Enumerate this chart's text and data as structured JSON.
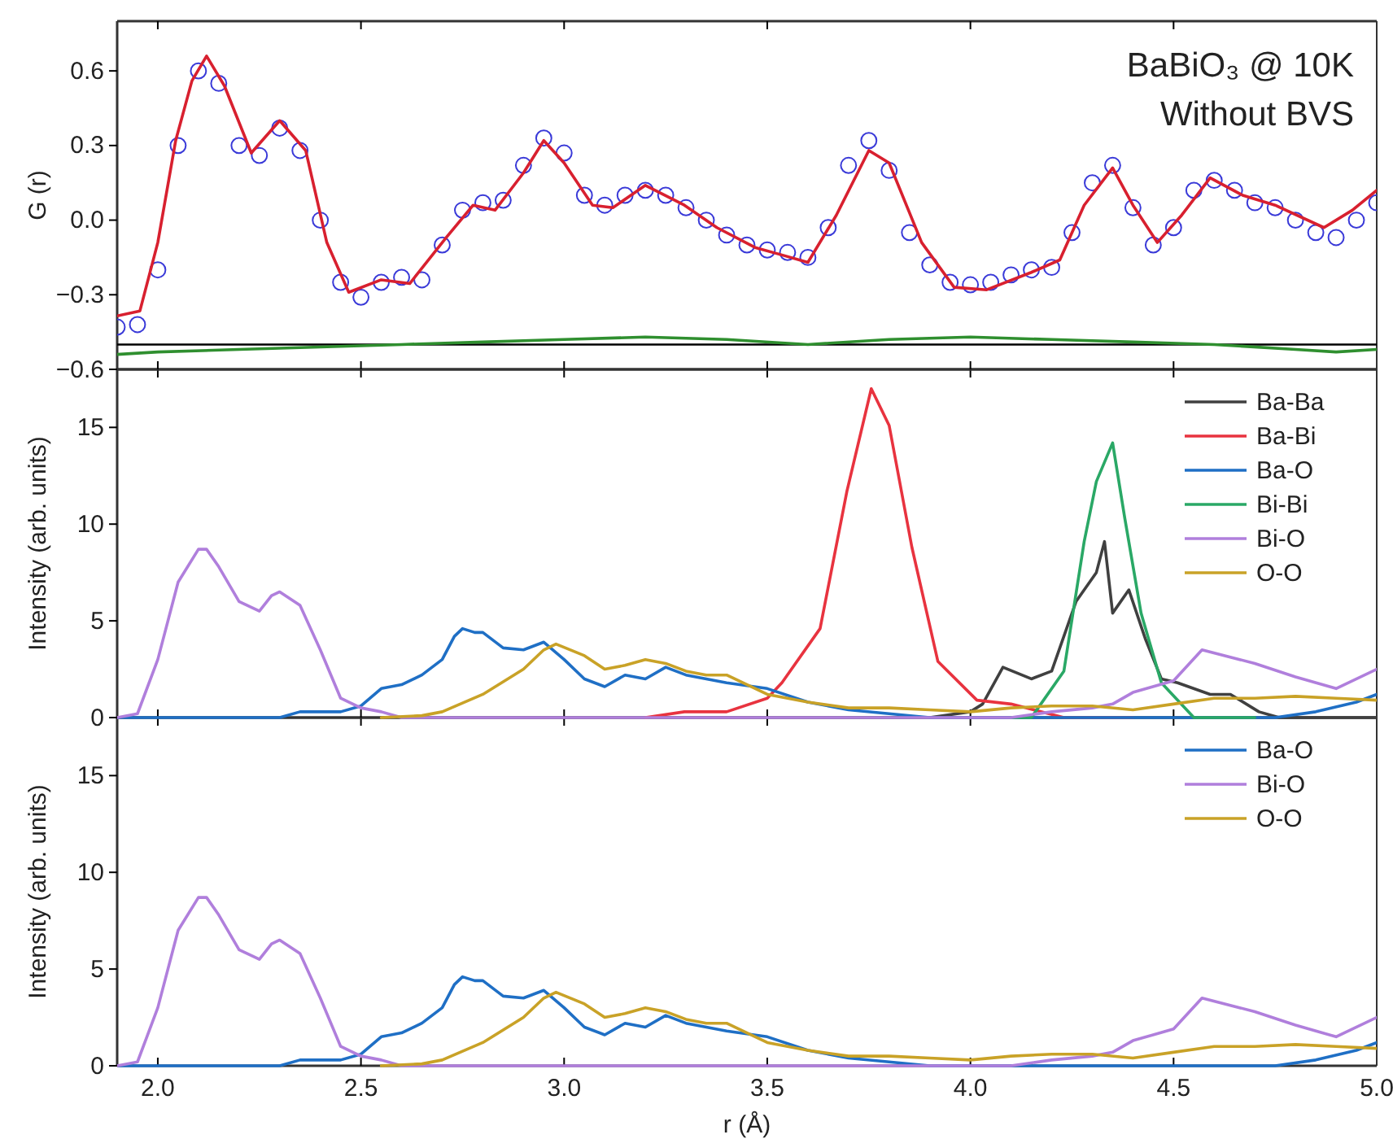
{
  "chart_data": [
    {
      "type": "line",
      "ylabel": "G (r)",
      "xlim": [
        1.9,
        5.0
      ],
      "ylim": [
        -0.6,
        0.8
      ],
      "tick_labels": "y",
      "grid": false,
      "legend": false,
      "xticks": [
        2,
        2.5,
        3,
        3.5,
        4,
        4.5,
        5
      ],
      "yticks": [
        {
          "value": -0.6,
          "label": "−0.6"
        },
        {
          "value": -0.3,
          "label": "−0.3"
        },
        {
          "value": 0,
          "label": "0.0"
        },
        {
          "value": 0.3,
          "label": "0.3"
        },
        {
          "value": 0.6,
          "label": "0.6"
        }
      ],
      "annotations": [
        "BaBiO₃ @ 10K",
        "Without BVS"
      ],
      "ref_lines": [
        {
          "axis": "y",
          "value": -0.5,
          "color": "#000000"
        }
      ],
      "series": [
        {
          "type": "scatter",
          "marker": "circle",
          "color": "#3a3ad8",
          "x": [
            1.9,
            1.95,
            2.0,
            2.05,
            2.1,
            2.15,
            2.2,
            2.25,
            2.3,
            2.35,
            2.4,
            2.45,
            2.5,
            2.55,
            2.6,
            2.65,
            2.7,
            2.75,
            2.8,
            2.85,
            2.9,
            2.95,
            3.0,
            3.05,
            3.1,
            3.15,
            3.2,
            3.25,
            3.3,
            3.35,
            3.4,
            3.45,
            3.5,
            3.55,
            3.6,
            3.65,
            3.7,
            3.75,
            3.8,
            3.85,
            3.9,
            3.95,
            4.0,
            4.05,
            4.1,
            4.15,
            4.2,
            4.25,
            4.3,
            4.35,
            4.4,
            4.45,
            4.5,
            4.55,
            4.6,
            4.65,
            4.7,
            4.75,
            4.8,
            4.85,
            4.9,
            4.95,
            5.0
          ],
          "values": [
            -0.43,
            -0.42,
            -0.2,
            0.3,
            0.6,
            0.55,
            0.3,
            0.26,
            0.37,
            0.28,
            0.0,
            -0.25,
            -0.31,
            -0.25,
            -0.23,
            -0.24,
            -0.1,
            0.04,
            0.07,
            0.08,
            0.22,
            0.33,
            0.27,
            0.1,
            0.06,
            0.1,
            0.12,
            0.1,
            0.05,
            0.0,
            -0.06,
            -0.1,
            -0.12,
            -0.13,
            -0.15,
            -0.03,
            0.22,
            0.32,
            0.2,
            -0.05,
            -0.18,
            -0.25,
            -0.26,
            -0.25,
            -0.22,
            -0.2,
            -0.19,
            -0.05,
            0.15,
            0.22,
            0.05,
            -0.1,
            -0.03,
            0.12,
            0.16,
            0.12,
            0.07,
            0.05,
            0.0,
            -0.05,
            -0.07,
            0.0,
            0.07
          ]
        },
        {
          "marker": "none",
          "color": "#d8202f",
          "x": [
            1.9,
            1.956,
            2.0,
            2.044,
            2.084,
            2.12,
            2.164,
            2.23,
            2.3,
            2.364,
            2.416,
            2.47,
            2.55,
            2.62,
            2.71,
            2.776,
            2.83,
            2.9,
            2.95,
            3.0,
            3.07,
            3.12,
            3.2,
            3.296,
            3.376,
            3.47,
            3.536,
            3.6,
            3.67,
            3.75,
            3.8,
            3.88,
            3.96,
            4.04,
            4.15,
            4.22,
            4.28,
            4.35,
            4.4,
            4.46,
            4.52,
            4.59,
            4.67,
            4.75,
            4.87,
            4.94,
            5.0
          ],
          "values": [
            -0.385,
            -0.365,
            -0.09,
            0.32,
            0.56,
            0.66,
            0.54,
            0.27,
            0.4,
            0.28,
            -0.09,
            -0.29,
            -0.24,
            -0.255,
            -0.07,
            0.06,
            0.04,
            0.19,
            0.32,
            0.23,
            0.06,
            0.05,
            0.14,
            0.06,
            -0.03,
            -0.11,
            -0.14,
            -0.17,
            0.02,
            0.28,
            0.23,
            -0.09,
            -0.27,
            -0.28,
            -0.21,
            -0.16,
            0.06,
            0.21,
            0.06,
            -0.09,
            0.02,
            0.17,
            0.1,
            0.06,
            -0.03,
            0.04,
            0.12
          ]
        },
        {
          "marker": "none",
          "color": "#2f8f2f",
          "x": [
            1.9,
            2.0,
            2.2,
            2.4,
            2.6,
            2.8,
            3.0,
            3.2,
            3.4,
            3.6,
            3.8,
            4.0,
            4.2,
            4.4,
            4.6,
            4.8,
            4.9,
            5.0
          ],
          "values": [
            -0.54,
            -0.53,
            -0.52,
            -0.51,
            -0.5,
            -0.49,
            -0.48,
            -0.47,
            -0.48,
            -0.5,
            -0.48,
            -0.47,
            -0.48,
            -0.49,
            -0.5,
            -0.52,
            -0.53,
            -0.52
          ]
        }
      ]
    },
    {
      "type": "line",
      "ylabel": "Intensity (arb. units)",
      "xlim": [
        1.9,
        5.0
      ],
      "ylim": [
        0,
        18
      ],
      "tick_labels": "y",
      "grid": false,
      "legend": "top right",
      "xticks": [
        2,
        2.5,
        3,
        3.5,
        4,
        4.5,
        5
      ],
      "yticks": [
        0,
        5,
        10,
        15
      ],
      "series": [
        {
          "name": "Ba-Ba",
          "color": "#404040",
          "x": [
            3.9,
            4.0,
            4.03,
            4.08,
            4.15,
            4.2,
            4.26,
            4.31,
            4.33,
            4.35,
            4.39,
            4.43,
            4.47,
            4.51,
            4.59,
            4.64,
            4.71,
            4.76,
            5.0
          ],
          "values": [
            0,
            0.3,
            0.7,
            2.6,
            2.0,
            2.4,
            6.0,
            7.5,
            9.1,
            5.4,
            6.6,
            4.1,
            2.0,
            1.8,
            1.2,
            1.2,
            0.3,
            0,
            0
          ]
        },
        {
          "name": "Ba-Bi",
          "color": "#e8333f",
          "x": [
            3.2,
            3.296,
            3.4,
            3.5,
            3.536,
            3.63,
            3.696,
            3.756,
            3.8,
            3.856,
            3.92,
            4.016,
            4.1,
            4.23,
            4.4
          ],
          "values": [
            0,
            0.3,
            0.3,
            1.0,
            1.8,
            4.6,
            11.7,
            17.0,
            15.1,
            8.8,
            2.9,
            0.9,
            0.7,
            0,
            0
          ]
        },
        {
          "name": "Ba-O",
          "color": "#1f6fc5",
          "x": [
            1.9,
            2.3,
            2.35,
            2.45,
            2.5,
            2.55,
            2.6,
            2.65,
            2.7,
            2.73,
            2.75,
            2.78,
            2.8,
            2.85,
            2.9,
            2.95,
            3.0,
            3.05,
            3.1,
            3.15,
            3.2,
            3.25,
            3.3,
            3.35,
            3.4,
            3.5,
            3.6,
            3.7,
            3.8,
            3.9,
            4.0,
            4.5,
            4.75,
            4.85,
            4.95,
            5.0
          ],
          "values": [
            0,
            0,
            0.3,
            0.3,
            0.6,
            1.5,
            1.7,
            2.2,
            3.0,
            4.2,
            4.6,
            4.4,
            4.4,
            3.6,
            3.5,
            3.9,
            3.0,
            2.0,
            1.6,
            2.2,
            2.0,
            2.6,
            2.2,
            2.0,
            1.8,
            1.5,
            0.8,
            0.4,
            0.2,
            0,
            0,
            0,
            0,
            0.3,
            0.8,
            1.2
          ]
        },
        {
          "name": "Bi-Bi",
          "color": "#2aa866",
          "x": [
            4.1,
            4.15,
            4.23,
            4.28,
            4.31,
            4.35,
            4.38,
            4.42,
            4.47,
            4.55,
            4.7
          ],
          "values": [
            0,
            0,
            2.4,
            9.1,
            12.2,
            14.2,
            10.3,
            5.4,
            1.8,
            0,
            0
          ]
        },
        {
          "name": "Bi-O",
          "color": "#b07fdc",
          "x": [
            1.9,
            1.95,
            2.0,
            2.05,
            2.1,
            2.12,
            2.15,
            2.2,
            2.25,
            2.28,
            2.3,
            2.35,
            2.4,
            2.45,
            2.5,
            2.55,
            2.6,
            3.9,
            4.1,
            4.2,
            4.3,
            4.35,
            4.4,
            4.5,
            4.57,
            4.7,
            4.8,
            4.9,
            5.0
          ],
          "values": [
            0,
            0.2,
            3,
            7,
            8.7,
            8.7,
            7.8,
            6,
            5.5,
            6.3,
            6.5,
            5.8,
            3.5,
            1,
            0.5,
            0.3,
            0,
            0,
            0,
            0.3,
            0.5,
            0.7,
            1.3,
            1.9,
            3.5,
            2.8,
            2.1,
            1.5,
            2.5
          ]
        },
        {
          "name": "O-O",
          "color": "#c9a227",
          "x": [
            2.55,
            2.65,
            2.7,
            2.8,
            2.9,
            2.95,
            2.98,
            3.05,
            3.1,
            3.15,
            3.2,
            3.25,
            3.3,
            3.35,
            3.4,
            3.5,
            3.6,
            3.7,
            3.8,
            3.9,
            4.0,
            4.1,
            4.2,
            4.3,
            4.4,
            4.5,
            4.6,
            4.7,
            4.8,
            4.9,
            5.0
          ],
          "values": [
            0,
            0.1,
            0.3,
            1.2,
            2.5,
            3.5,
            3.8,
            3.2,
            2.5,
            2.7,
            3.0,
            2.8,
            2.4,
            2.2,
            2.2,
            1.2,
            0.8,
            0.5,
            0.5,
            0.4,
            0.3,
            0.5,
            0.6,
            0.6,
            0.4,
            0.7,
            1.0,
            1.0,
            1.1,
            1.0,
            0.9
          ]
        }
      ]
    },
    {
      "type": "line",
      "ylabel": "Intensity (arb. units)",
      "xlabel": "r (Å)",
      "xlim": [
        1.9,
        5.0
      ],
      "ylim": [
        0,
        18
      ],
      "grid": false,
      "legend": "top right",
      "xticks": [
        {
          "value": 2.0,
          "label": "2.0"
        },
        {
          "value": 2.5,
          "label": "2.5"
        },
        {
          "value": 3.0,
          "label": "3.0"
        },
        {
          "value": 3.5,
          "label": "3.5"
        },
        {
          "value": 4.0,
          "label": "4.0"
        },
        {
          "value": 4.5,
          "label": "4.5"
        },
        {
          "value": 5.0,
          "label": "5.0"
        }
      ],
      "yticks": [
        0,
        5,
        10,
        15
      ],
      "series": [
        {
          "name": "Ba-O",
          "color": "#1f6fc5",
          "x": [
            1.9,
            2.3,
            2.35,
            2.45,
            2.5,
            2.55,
            2.6,
            2.65,
            2.7,
            2.73,
            2.75,
            2.78,
            2.8,
            2.85,
            2.9,
            2.95,
            3.0,
            3.05,
            3.1,
            3.15,
            3.2,
            3.25,
            3.3,
            3.35,
            3.4,
            3.5,
            3.6,
            3.7,
            3.8,
            3.9,
            4.0,
            4.5,
            4.75,
            4.85,
            4.95,
            5.0
          ],
          "values": [
            0,
            0,
            0.3,
            0.3,
            0.6,
            1.5,
            1.7,
            2.2,
            3.0,
            4.2,
            4.6,
            4.4,
            4.4,
            3.6,
            3.5,
            3.9,
            3.0,
            2.0,
            1.6,
            2.2,
            2.0,
            2.6,
            2.2,
            2.0,
            1.8,
            1.5,
            0.8,
            0.4,
            0.2,
            0,
            0,
            0,
            0,
            0.3,
            0.8,
            1.2
          ]
        },
        {
          "name": "Bi-O",
          "color": "#b07fdc",
          "x": [
            1.9,
            1.95,
            2.0,
            2.05,
            2.1,
            2.12,
            2.15,
            2.2,
            2.25,
            2.28,
            2.3,
            2.35,
            2.4,
            2.45,
            2.5,
            2.55,
            2.6,
            3.9,
            4.1,
            4.2,
            4.3,
            4.35,
            4.4,
            4.5,
            4.57,
            4.7,
            4.8,
            4.9,
            5.0
          ],
          "values": [
            0,
            0.2,
            3,
            7,
            8.7,
            8.7,
            7.8,
            6,
            5.5,
            6.3,
            6.5,
            5.8,
            3.5,
            1,
            0.5,
            0.3,
            0,
            0,
            0,
            0.3,
            0.5,
            0.7,
            1.3,
            1.9,
            3.5,
            2.8,
            2.1,
            1.5,
            2.5
          ]
        },
        {
          "name": "O-O",
          "color": "#c9a227",
          "x": [
            2.55,
            2.65,
            2.7,
            2.8,
            2.9,
            2.95,
            2.98,
            3.05,
            3.1,
            3.15,
            3.2,
            3.25,
            3.3,
            3.35,
            3.4,
            3.5,
            3.6,
            3.7,
            3.8,
            3.9,
            4.0,
            4.1,
            4.2,
            4.3,
            4.4,
            4.5,
            4.6,
            4.7,
            4.8,
            4.9,
            5.0
          ],
          "values": [
            0,
            0.1,
            0.3,
            1.2,
            2.5,
            3.5,
            3.8,
            3.2,
            2.5,
            2.7,
            3.0,
            2.8,
            2.4,
            2.2,
            2.2,
            1.2,
            0.8,
            0.5,
            0.5,
            0.4,
            0.3,
            0.5,
            0.6,
            0.6,
            0.4,
            0.7,
            1.0,
            1.0,
            1.1,
            1.0,
            0.9
          ]
        }
      ]
    }
  ]
}
